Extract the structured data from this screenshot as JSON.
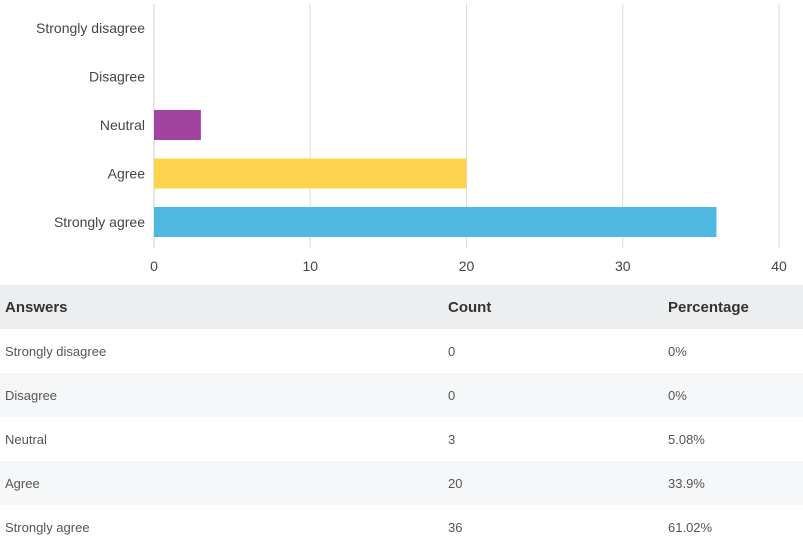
{
  "chart_data": {
    "type": "bar",
    "orientation": "horizontal",
    "categories": [
      "Strongly disagree",
      "Disagree",
      "Neutral",
      "Agree",
      "Strongly agree"
    ],
    "values": [
      0,
      0,
      3,
      20,
      36
    ],
    "colors": [
      "#a044a0",
      "#a044a0",
      "#a044a0",
      "#fcd34d",
      "#4eb8e0"
    ],
    "xlim": [
      0,
      40
    ],
    "xticks": [
      0,
      10,
      20,
      30,
      40
    ],
    "grid": true,
    "title": "",
    "xlabel": "",
    "ylabel": ""
  },
  "table": {
    "headers": {
      "answers": "Answers",
      "count": "Count",
      "percentage": "Percentage"
    },
    "rows": [
      {
        "answer": "Strongly disagree",
        "count": "0",
        "percentage": "0%"
      },
      {
        "answer": "Disagree",
        "count": "0",
        "percentage": "0%"
      },
      {
        "answer": "Neutral",
        "count": "3",
        "percentage": "5.08%"
      },
      {
        "answer": "Agree",
        "count": "20",
        "percentage": "33.9%"
      },
      {
        "answer": "Strongly agree",
        "count": "36",
        "percentage": "61.02%"
      }
    ]
  }
}
